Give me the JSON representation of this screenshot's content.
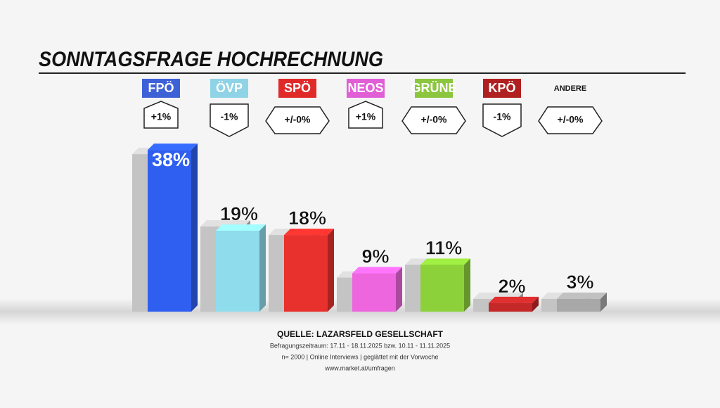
{
  "chart_data": {
    "type": "bar",
    "title": "SONNTAGSFRAGE HOCHRECHNUNG",
    "categories": [
      "FPÖ",
      "ÖVP",
      "SPÖ",
      "NEOS",
      "GRÜNE",
      "KPÖ",
      "ANDERE"
    ],
    "values": [
      38,
      19,
      18,
      9,
      11,
      2,
      3
    ],
    "value_labels": [
      "38%",
      "19%",
      "18%",
      "9%",
      "11%",
      "2%",
      "3%"
    ],
    "previous_values": [
      37,
      20,
      18,
      8,
      11,
      3,
      3
    ],
    "changes": [
      "+1%",
      "-1%",
      "+/-0%",
      "+1%",
      "+/-0%",
      "-1%",
      "+/-0%"
    ],
    "colors": [
      "#2f5ff0",
      "#8fdcec",
      "#e8302c",
      "#ee66dd",
      "#8cd13a",
      "#c42828",
      "#a8a8a8"
    ],
    "label_backgrounds": [
      "#3d62d8",
      "#8fd3e6",
      "#e02a2a",
      "#e05fd6",
      "#8cc63f",
      "#b02020",
      null
    ],
    "previous_color": "#c4c4c4",
    "source": "QUELLE: LAZARSFELD GESELLSCHAFT",
    "notes": [
      "Befragungszeitraum:  17.11 - 18.11.2025   bzw.   10.11 - 11.11.2025",
      "n= 2000 | Online Interviews | geglättet mit der Vorwoche",
      "www.market.at/umfragen"
    ]
  }
}
